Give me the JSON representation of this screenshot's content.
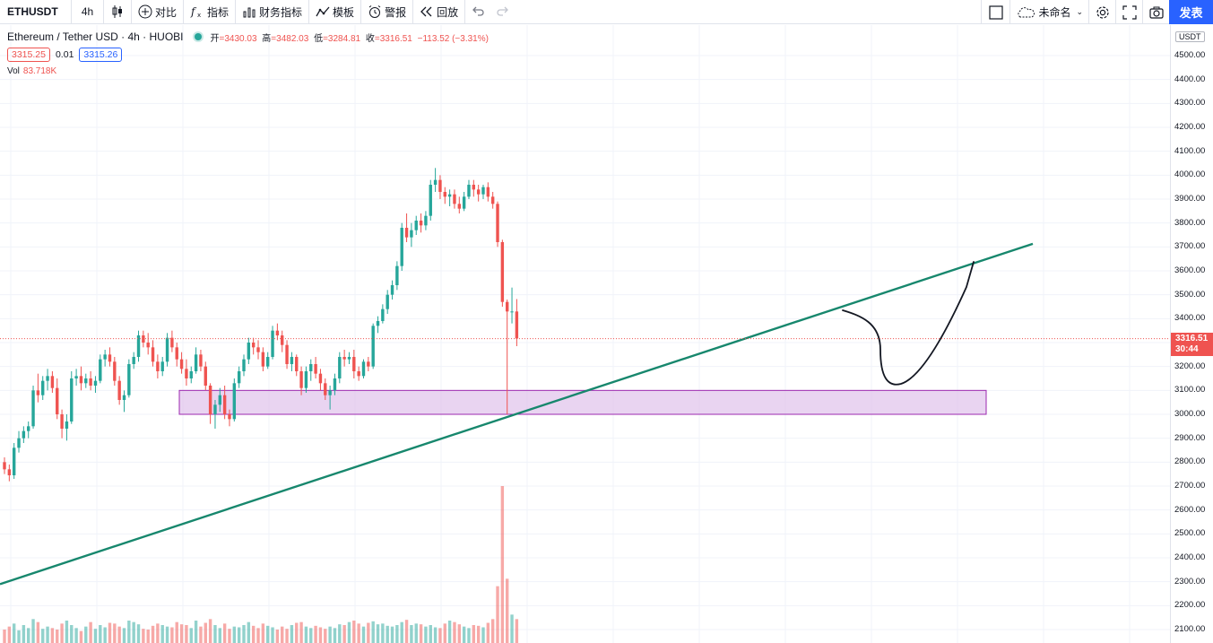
{
  "toolbar": {
    "symbol": "ETHUSDT",
    "interval": "4h",
    "compare": "对比",
    "indicators": "指标",
    "financials": "财务指标",
    "templates": "模板",
    "alert": "警报",
    "replay": "回放",
    "layout_name": "未命名",
    "publish": "发表"
  },
  "legend": {
    "title": "Ethereum / Tether USD · 4h · HUOBI",
    "open_label": "开",
    "open": "=3430.03",
    "high_label": "高",
    "high": "=3482.03",
    "low_label": "低",
    "low": "=3284.81",
    "close_label": "收",
    "close": "=3316.51",
    "change": "−113.52 (−3.31%)",
    "sell_price": "3315.25",
    "spread": "0.01",
    "buy_price": "3315.26",
    "volume_label": "Vol",
    "volume": "83.718K"
  },
  "axis": {
    "currency": "USDT",
    "ticks": [
      "4500.00",
      "4400.00",
      "4300.00",
      "4200.00",
      "4100.00",
      "4000.00",
      "3900.00",
      "3800.00",
      "3700.00",
      "3600.00",
      "3500.00",
      "3400.00",
      "3300.00",
      "3200.00",
      "3100.00",
      "3000.00",
      "2900.00",
      "2800.00",
      "2700.00",
      "2600.00",
      "2500.00",
      "2400.00",
      "2300.00",
      "2200.00",
      "2100.00"
    ],
    "last_price": "3316.51",
    "countdown": "30:44"
  },
  "colors": {
    "up": "#26a69a",
    "down": "#ef5350",
    "trendline": "#17876d",
    "zone_fill": "#e1c6ec",
    "zone_border": "#9c27b0",
    "accent": "#2962ff"
  },
  "chart_data": {
    "type": "candlestick",
    "ylim": [
      2050,
      4560
    ],
    "last": 3316.51,
    "candles": [
      [
        2800,
        2820,
        2750,
        2770
      ],
      [
        2770,
        2790,
        2720,
        2745
      ],
      [
        2745,
        2880,
        2730,
        2860
      ],
      [
        2860,
        2930,
        2840,
        2900
      ],
      [
        2900,
        2950,
        2880,
        2930
      ],
      [
        2930,
        2970,
        2900,
        2950
      ],
      [
        2950,
        3120,
        2940,
        3100
      ],
      [
        3100,
        3170,
        3050,
        3080
      ],
      [
        3080,
        3160,
        3060,
        3140
      ],
      [
        3140,
        3190,
        3100,
        3160
      ],
      [
        3160,
        3180,
        3090,
        3110
      ],
      [
        3110,
        3150,
        2980,
        3000
      ],
      [
        3000,
        3020,
        2900,
        2940
      ],
      [
        2940,
        3000,
        2890,
        2970
      ],
      [
        2970,
        3180,
        2960,
        3150
      ],
      [
        3150,
        3190,
        3120,
        3160
      ],
      [
        3160,
        3200,
        3100,
        3130
      ],
      [
        3130,
        3170,
        3110,
        3150
      ],
      [
        3150,
        3180,
        3100,
        3120
      ],
      [
        3120,
        3160,
        3090,
        3140
      ],
      [
        3140,
        3250,
        3130,
        3230
      ],
      [
        3230,
        3270,
        3200,
        3250
      ],
      [
        3250,
        3280,
        3200,
        3220
      ],
      [
        3220,
        3240,
        3120,
        3140
      ],
      [
        3140,
        3160,
        3040,
        3060
      ],
      [
        3060,
        3100,
        3010,
        3080
      ],
      [
        3080,
        3230,
        3070,
        3210
      ],
      [
        3210,
        3260,
        3190,
        3240
      ],
      [
        3240,
        3350,
        3220,
        3330
      ],
      [
        3330,
        3350,
        3280,
        3300
      ],
      [
        3300,
        3340,
        3250,
        3280
      ],
      [
        3280,
        3310,
        3200,
        3220
      ],
      [
        3220,
        3250,
        3150,
        3180
      ],
      [
        3180,
        3240,
        3160,
        3220
      ],
      [
        3220,
        3340,
        3200,
        3320
      ],
      [
        3320,
        3350,
        3260,
        3280
      ],
      [
        3280,
        3300,
        3200,
        3230
      ],
      [
        3230,
        3260,
        3170,
        3190
      ],
      [
        3190,
        3230,
        3120,
        3150
      ],
      [
        3150,
        3200,
        3130,
        3180
      ],
      [
        3180,
        3280,
        3170,
        3250
      ],
      [
        3250,
        3270,
        3180,
        3200
      ],
      [
        3200,
        3220,
        3100,
        3120
      ],
      [
        3120,
        3130,
        2960,
        3000
      ],
      [
        3000,
        3060,
        2940,
        3040
      ],
      [
        3040,
        3110,
        3010,
        3080
      ],
      [
        3080,
        3120,
        2980,
        3000
      ],
      [
        3000,
        3020,
        2950,
        2980
      ],
      [
        2980,
        3150,
        2970,
        3130
      ],
      [
        3130,
        3200,
        3110,
        3180
      ],
      [
        3180,
        3250,
        3160,
        3230
      ],
      [
        3230,
        3320,
        3210,
        3300
      ],
      [
        3300,
        3320,
        3250,
        3280
      ],
      [
        3280,
        3310,
        3230,
        3260
      ],
      [
        3260,
        3280,
        3180,
        3200
      ],
      [
        3200,
        3260,
        3190,
        3240
      ],
      [
        3240,
        3370,
        3230,
        3350
      ],
      [
        3350,
        3380,
        3310,
        3330
      ],
      [
        3330,
        3350,
        3260,
        3290
      ],
      [
        3290,
        3310,
        3190,
        3210
      ],
      [
        3210,
        3260,
        3180,
        3240
      ],
      [
        3240,
        3250,
        3160,
        3180
      ],
      [
        3180,
        3200,
        3080,
        3110
      ],
      [
        3110,
        3200,
        3090,
        3180
      ],
      [
        3180,
        3230,
        3140,
        3210
      ],
      [
        3210,
        3240,
        3150,
        3170
      ],
      [
        3170,
        3190,
        3100,
        3130
      ],
      [
        3130,
        3150,
        3060,
        3080
      ],
      [
        3080,
        3120,
        3020,
        3100
      ],
      [
        3100,
        3170,
        3080,
        3150
      ],
      [
        3150,
        3260,
        3130,
        3240
      ],
      [
        3240,
        3270,
        3200,
        3230
      ],
      [
        3230,
        3260,
        3210,
        3240
      ],
      [
        3240,
        3270,
        3150,
        3180
      ],
      [
        3180,
        3200,
        3140,
        3160
      ],
      [
        3160,
        3230,
        3150,
        3220
      ],
      [
        3220,
        3240,
        3180,
        3200
      ],
      [
        3200,
        3380,
        3190,
        3370
      ],
      [
        3370,
        3410,
        3340,
        3390
      ],
      [
        3390,
        3460,
        3380,
        3440
      ],
      [
        3440,
        3520,
        3420,
        3500
      ],
      [
        3500,
        3560,
        3480,
        3540
      ],
      [
        3540,
        3640,
        3520,
        3620
      ],
      [
        3620,
        3800,
        3600,
        3780
      ],
      [
        3780,
        3840,
        3720,
        3740
      ],
      [
        3740,
        3800,
        3700,
        3770
      ],
      [
        3770,
        3830,
        3750,
        3810
      ],
      [
        3810,
        3840,
        3760,
        3790
      ],
      [
        3790,
        3850,
        3770,
        3830
      ],
      [
        3830,
        3980,
        3810,
        3960
      ],
      [
        3960,
        4030,
        3930,
        3980
      ],
      [
        3980,
        4000,
        3900,
        3930
      ],
      [
        3930,
        3950,
        3880,
        3910
      ],
      [
        3910,
        3940,
        3870,
        3920
      ],
      [
        3920,
        3940,
        3860,
        3880
      ],
      [
        3880,
        3910,
        3840,
        3860
      ],
      [
        3860,
        3930,
        3850,
        3910
      ],
      [
        3910,
        3980,
        3900,
        3960
      ],
      [
        3960,
        3980,
        3910,
        3940
      ],
      [
        3940,
        3960,
        3890,
        3920
      ],
      [
        3920,
        3960,
        3900,
        3950
      ],
      [
        3950,
        3970,
        3890,
        3910
      ],
      [
        3910,
        3930,
        3860,
        3880
      ],
      [
        3880,
        3890,
        3700,
        3720
      ],
      [
        3720,
        3730,
        3450,
        3470
      ],
      [
        3470,
        3480,
        3000,
        3430
      ],
      [
        3430,
        3530,
        3380,
        3430
      ],
      [
        3430,
        3482,
        3285,
        3317
      ]
    ],
    "volume": [
      90,
      110,
      130,
      85,
      120,
      100,
      160,
      140,
      95,
      110,
      100,
      90,
      130,
      150,
      120,
      100,
      80,
      110,
      140,
      95,
      120,
      105,
      135,
      130,
      110,
      100,
      150,
      140,
      125,
      95,
      90,
      115,
      130,
      120,
      110,
      105,
      140,
      125,
      120,
      100,
      150,
      110,
      135,
      160,
      120,
      100,
      130,
      95,
      110,
      105,
      120,
      140,
      115,
      100,
      130,
      115,
      105,
      90,
      110,
      95,
      120,
      135,
      140,
      110,
      100,
      115,
      105,
      95,
      110,
      100,
      125,
      120,
      140,
      150,
      130,
      110,
      135,
      145,
      125,
      130,
      115,
      110,
      120,
      140,
      155,
      120,
      130,
      125,
      110,
      120,
      105,
      100,
      130,
      150,
      140,
      125,
      110,
      100,
      120,
      115,
      105,
      135,
      160,
      380,
      1050,
      430,
      190,
      160
    ],
    "trendline": [
      [
        0,
        2290
      ],
      [
        1152,
        3713
      ]
    ],
    "support_zone": {
      "y1": 3000,
      "y2": 3100
    }
  }
}
